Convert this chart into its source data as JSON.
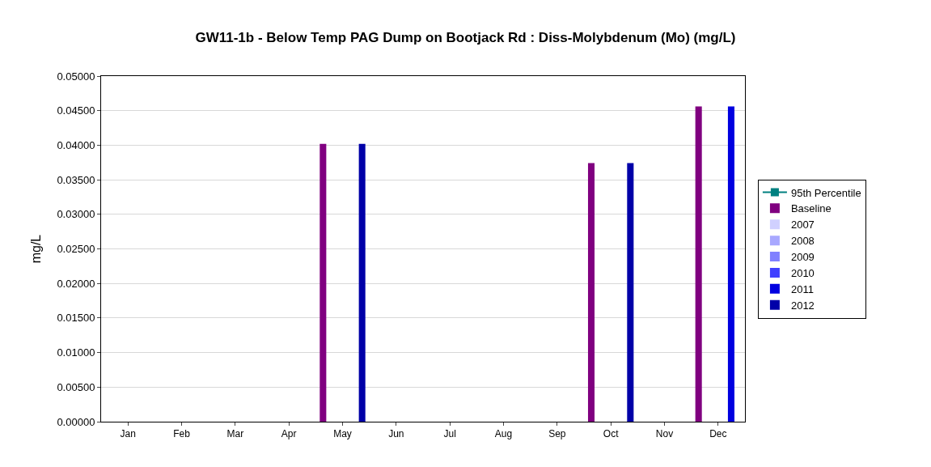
{
  "chart_data": {
    "type": "bar",
    "title": "GW11-1b - Below Temp PAG Dump on Bootjack Rd : Diss-Molybdenum (Mo) (mg/L)",
    "ylabel": "mg/L",
    "categories": [
      "Jan",
      "Feb",
      "Mar",
      "Apr",
      "May",
      "Jun",
      "Jul",
      "Aug",
      "Sep",
      "Oct",
      "Nov",
      "Dec"
    ],
    "series": [
      {
        "name": "95th Percentile",
        "type": "line",
        "marker": "square",
        "color": "#008080",
        "values": [
          null,
          null,
          null,
          null,
          null,
          null,
          null,
          null,
          null,
          null,
          null,
          null
        ]
      },
      {
        "name": "Baseline",
        "color": "#800080",
        "values": [
          null,
          null,
          null,
          null,
          0.0402,
          null,
          null,
          null,
          null,
          0.0374,
          null,
          0.0456
        ]
      },
      {
        "name": "2007",
        "color": "#d0d0ff",
        "values": [
          null,
          null,
          null,
          null,
          null,
          null,
          null,
          null,
          null,
          null,
          null,
          null
        ]
      },
      {
        "name": "2008",
        "color": "#a8a8ff",
        "values": [
          null,
          null,
          null,
          null,
          null,
          null,
          null,
          null,
          null,
          null,
          null,
          null
        ]
      },
      {
        "name": "2009",
        "color": "#8080ff",
        "values": [
          null,
          null,
          null,
          null,
          null,
          null,
          null,
          null,
          null,
          null,
          null,
          null
        ]
      },
      {
        "name": "2010",
        "color": "#4040ff",
        "values": [
          null,
          null,
          null,
          null,
          null,
          null,
          null,
          null,
          null,
          null,
          null,
          null
        ]
      },
      {
        "name": "2011",
        "color": "#0000e0",
        "values": [
          null,
          null,
          null,
          null,
          null,
          null,
          null,
          null,
          null,
          null,
          null,
          0.0456
        ]
      },
      {
        "name": "2012",
        "color": "#0000a8",
        "values": [
          null,
          null,
          null,
          null,
          0.0402,
          null,
          null,
          null,
          null,
          0.0374,
          null,
          null
        ]
      }
    ],
    "ylim": [
      0,
      0.05
    ],
    "yticks": [
      {
        "value": 0,
        "label": "0.00000"
      },
      {
        "value": 0.005,
        "label": "0.00500"
      },
      {
        "value": 0.01,
        "label": "0.01000"
      },
      {
        "value": 0.015,
        "label": "0.01500"
      },
      {
        "value": 0.02,
        "label": "0.02000"
      },
      {
        "value": 0.025,
        "label": "0.02500"
      },
      {
        "value": 0.03,
        "label": "0.03000"
      },
      {
        "value": 0.035,
        "label": "0.03500"
      },
      {
        "value": 0.04,
        "label": "0.04000"
      },
      {
        "value": 0.045,
        "label": "0.04500"
      },
      {
        "value": 0.05,
        "label": "0.05000"
      }
    ],
    "grid": "y",
    "legend": "right"
  }
}
